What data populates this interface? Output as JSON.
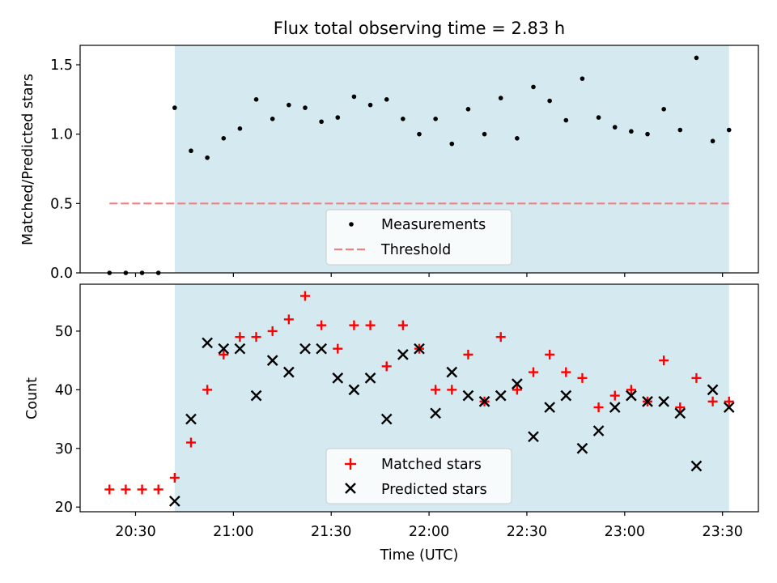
{
  "chart_data": [
    {
      "type": "scatter",
      "title": "Flux total observing time = 2.83 h",
      "xlabel": "",
      "ylabel": "Matched/Predicted stars",
      "ylim": [
        0,
        1.64
      ],
      "yticks": [
        "0.0",
        "0.5",
        "1.0",
        "1.5"
      ],
      "shaded_region": {
        "start": "20:42",
        "end": "23:32",
        "color": "#d4eaf0"
      },
      "legend": {
        "placement": "lower center",
        "entries": [
          "Measurements",
          "Threshold"
        ]
      },
      "threshold": {
        "name": "Threshold",
        "value": 0.5,
        "x_start": "20:22",
        "x_end": "23:32",
        "color": "#f08080",
        "style": "dashed"
      },
      "series": [
        {
          "name": "Measurements",
          "color": "#000000",
          "points": [
            [
              "20:22",
              0.0
            ],
            [
              "20:27",
              0.0
            ],
            [
              "20:32",
              0.0
            ],
            [
              "20:37",
              0.0
            ],
            [
              "20:42",
              1.19
            ],
            [
              "20:47",
              0.88
            ],
            [
              "20:52",
              0.83
            ],
            [
              "20:57",
              0.97
            ],
            [
              "21:02",
              1.04
            ],
            [
              "21:07",
              1.25
            ],
            [
              "21:12",
              1.11
            ],
            [
              "21:17",
              1.21
            ],
            [
              "21:22",
              1.19
            ],
            [
              "21:27",
              1.09
            ],
            [
              "21:32",
              1.12
            ],
            [
              "21:37",
              1.27
            ],
            [
              "21:42",
              1.21
            ],
            [
              "21:47",
              1.25
            ],
            [
              "21:52",
              1.11
            ],
            [
              "21:57",
              1.0
            ],
            [
              "22:02",
              1.11
            ],
            [
              "22:07",
              0.93
            ],
            [
              "22:12",
              1.18
            ],
            [
              "22:17",
              1.0
            ],
            [
              "22:22",
              1.26
            ],
            [
              "22:27",
              0.97
            ],
            [
              "22:32",
              1.34
            ],
            [
              "22:37",
              1.24
            ],
            [
              "22:42",
              1.1
            ],
            [
              "22:47",
              1.4
            ],
            [
              "22:52",
              1.12
            ],
            [
              "22:57",
              1.05
            ],
            [
              "23:02",
              1.02
            ],
            [
              "23:07",
              1.0
            ],
            [
              "23:12",
              1.18
            ],
            [
              "23:17",
              1.03
            ],
            [
              "23:22",
              1.55
            ],
            [
              "23:27",
              0.95
            ],
            [
              "23:32",
              1.03
            ]
          ]
        }
      ]
    },
    {
      "type": "scatter",
      "title": "",
      "xlabel": "Time (UTC)",
      "ylabel": "Count",
      "ylim": [
        19.2,
        58
      ],
      "yticks": [
        "20",
        "30",
        "40",
        "50"
      ],
      "xticks": [
        "20:30",
        "21:00",
        "21:30",
        "22:00",
        "22:30",
        "23:00",
        "23:30"
      ],
      "xlim": [
        "20:13",
        "23:41"
      ],
      "shaded_region": {
        "start": "20:42",
        "end": "23:32",
        "color": "#d4eaf0"
      },
      "legend": {
        "placement": "lower center",
        "entries": [
          "Matched stars",
          "Predicted stars"
        ]
      },
      "x": [
        "20:22",
        "20:27",
        "20:32",
        "20:37",
        "20:42",
        "20:47",
        "20:52",
        "20:57",
        "21:02",
        "21:07",
        "21:12",
        "21:17",
        "21:22",
        "21:27",
        "21:32",
        "21:37",
        "21:42",
        "21:47",
        "21:52",
        "21:57",
        "22:02",
        "22:07",
        "22:12",
        "22:17",
        "22:22",
        "22:27",
        "22:32",
        "22:37",
        "22:42",
        "22:47",
        "22:52",
        "22:57",
        "23:02",
        "23:07",
        "23:12",
        "23:17",
        "23:22",
        "23:27",
        "23:32"
      ],
      "series": [
        {
          "name": "Matched stars",
          "color": "#ff0000",
          "marker": "plus",
          "values": [
            23,
            23,
            23,
            23,
            25,
            31,
            40,
            46,
            49,
            49,
            50,
            52,
            56,
            51,
            47,
            51,
            51,
            44,
            51,
            47,
            40,
            40,
            46,
            38,
            49,
            40,
            43,
            46,
            43,
            42,
            37,
            39,
            40,
            38,
            45,
            37,
            42,
            38,
            38
          ]
        },
        {
          "name": "Predicted stars",
          "color": "#000000",
          "marker": "x",
          "values": [
            null,
            null,
            null,
            null,
            21,
            35,
            48,
            47,
            47,
            39,
            45,
            43,
            47,
            47,
            42,
            40,
            42,
            35,
            46,
            47,
            36,
            43,
            39,
            38,
            39,
            41,
            32,
            37,
            39,
            30,
            33,
            37,
            39,
            38,
            38,
            36,
            27,
            40,
            37
          ]
        }
      ]
    }
  ]
}
